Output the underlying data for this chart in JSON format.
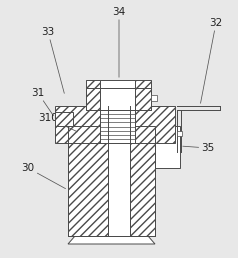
{
  "bg_color": "#e8e8e8",
  "line_color": "#4a4a4a",
  "figsize": [
    2.38,
    2.58
  ],
  "dpi": 100,
  "label_fontsize": 7.5
}
